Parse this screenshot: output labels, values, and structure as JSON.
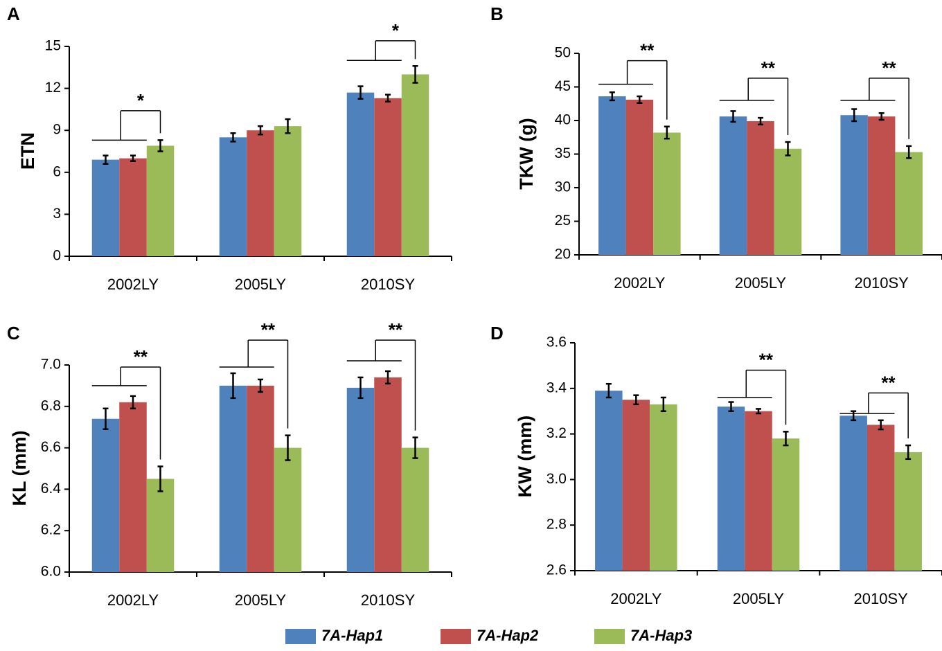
{
  "legend": [
    {
      "name": "7A-Hap1",
      "color": "#4f81bd"
    },
    {
      "name": "7A-Hap2",
      "color": "#c0504d"
    },
    {
      "name": "7A-Hap3",
      "color": "#9bbb59"
    }
  ],
  "chart_data": [
    {
      "panel": "A",
      "type": "bar",
      "ylabel": "ETN",
      "ylim": [
        0,
        15
      ],
      "yticks": [
        "0",
        "3",
        "6",
        "9",
        "12",
        "15"
      ],
      "categories": [
        "2002LY",
        "2005LY",
        "2010SY"
      ],
      "series": [
        {
          "name": "7A-Hap1",
          "values": [
            6.9,
            8.5,
            11.7
          ],
          "errors": [
            0.3,
            0.3,
            0.45
          ]
        },
        {
          "name": "7A-Hap2",
          "values": [
            7.0,
            9.0,
            11.3
          ],
          "errors": [
            0.2,
            0.3,
            0.25
          ]
        },
        {
          "name": "7A-Hap3",
          "values": [
            7.9,
            9.3,
            13.0
          ],
          "errors": [
            0.4,
            0.5,
            0.6
          ]
        }
      ],
      "significance": [
        {
          "category": 0,
          "label": "*",
          "top": 10.4,
          "base": 8.3
        },
        {
          "category": 2,
          "label": "*",
          "top": 15.4,
          "base": 14.0
        }
      ]
    },
    {
      "panel": "B",
      "type": "bar",
      "ylabel": "TKW (g)",
      "ylim": [
        20,
        50
      ],
      "yticks": [
        "20",
        "25",
        "30",
        "35",
        "40",
        "45",
        "50"
      ],
      "categories": [
        "2002LY",
        "2005LY",
        "2010SY"
      ],
      "series": [
        {
          "name": "7A-Hap1",
          "values": [
            43.6,
            40.6,
            40.8
          ],
          "errors": [
            0.6,
            0.8,
            0.9
          ]
        },
        {
          "name": "7A-Hap2",
          "values": [
            43.1,
            39.9,
            40.6
          ],
          "errors": [
            0.5,
            0.5,
            0.5
          ]
        },
        {
          "name": "7A-Hap3",
          "values": [
            38.2,
            35.8,
            35.3
          ],
          "errors": [
            0.9,
            1.0,
            0.9
          ]
        }
      ],
      "significance": [
        {
          "category": 0,
          "label": "**",
          "top": 48.9,
          "base": 45.4
        },
        {
          "category": 1,
          "label": "**",
          "top": 46.3,
          "base": 43.0
        },
        {
          "category": 2,
          "label": "**",
          "top": 46.3,
          "base": 43.0
        }
      ]
    },
    {
      "panel": "C",
      "type": "bar",
      "ylabel": "KL (mm)",
      "ylim": [
        6.0,
        7.0
      ],
      "yticks": [
        "6.0",
        "6.2",
        "6.4",
        "6.6",
        "6.8",
        "7.0"
      ],
      "categories": [
        "2002LY",
        "2005LY",
        "2010SY"
      ],
      "series": [
        {
          "name": "7A-Hap1",
          "values": [
            6.74,
            6.9,
            6.89
          ],
          "errors": [
            0.05,
            0.06,
            0.05
          ]
        },
        {
          "name": "7A-Hap2",
          "values": [
            6.82,
            6.9,
            6.94
          ],
          "errors": [
            0.03,
            0.03,
            0.03
          ]
        },
        {
          "name": "7A-Hap3",
          "values": [
            6.45,
            6.6,
            6.6
          ],
          "errors": [
            0.06,
            0.06,
            0.05
          ]
        }
      ],
      "significance": [
        {
          "category": 0,
          "label": "**",
          "top": 6.99,
          "base": 6.9
        },
        {
          "category": 1,
          "label": "**",
          "top": 7.12,
          "base": 6.99
        },
        {
          "category": 2,
          "label": "**",
          "top": 7.12,
          "base": 7.02
        }
      ]
    },
    {
      "panel": "D",
      "type": "bar",
      "ylabel": "KW (mm)",
      "ylim": [
        2.6,
        3.6
      ],
      "yticks": [
        "2.6",
        "2.8",
        "3.0",
        "3.2",
        "3.4",
        "3.6"
      ],
      "categories": [
        "2002LY",
        "2005LY",
        "2010SY"
      ],
      "series": [
        {
          "name": "7A-Hap1",
          "values": [
            3.39,
            3.32,
            3.28
          ],
          "errors": [
            0.03,
            0.02,
            0.02
          ]
        },
        {
          "name": "7A-Hap2",
          "values": [
            3.35,
            3.3,
            3.24
          ],
          "errors": [
            0.02,
            0.01,
            0.02
          ]
        },
        {
          "name": "7A-Hap3",
          "values": [
            3.33,
            3.18,
            3.12
          ],
          "errors": [
            0.03,
            0.03,
            0.03
          ]
        }
      ],
      "significance": [
        {
          "category": 1,
          "label": "**",
          "top": 3.48,
          "base": 3.36
        },
        {
          "category": 2,
          "label": "**",
          "top": 3.38,
          "base": 3.29
        }
      ]
    }
  ]
}
